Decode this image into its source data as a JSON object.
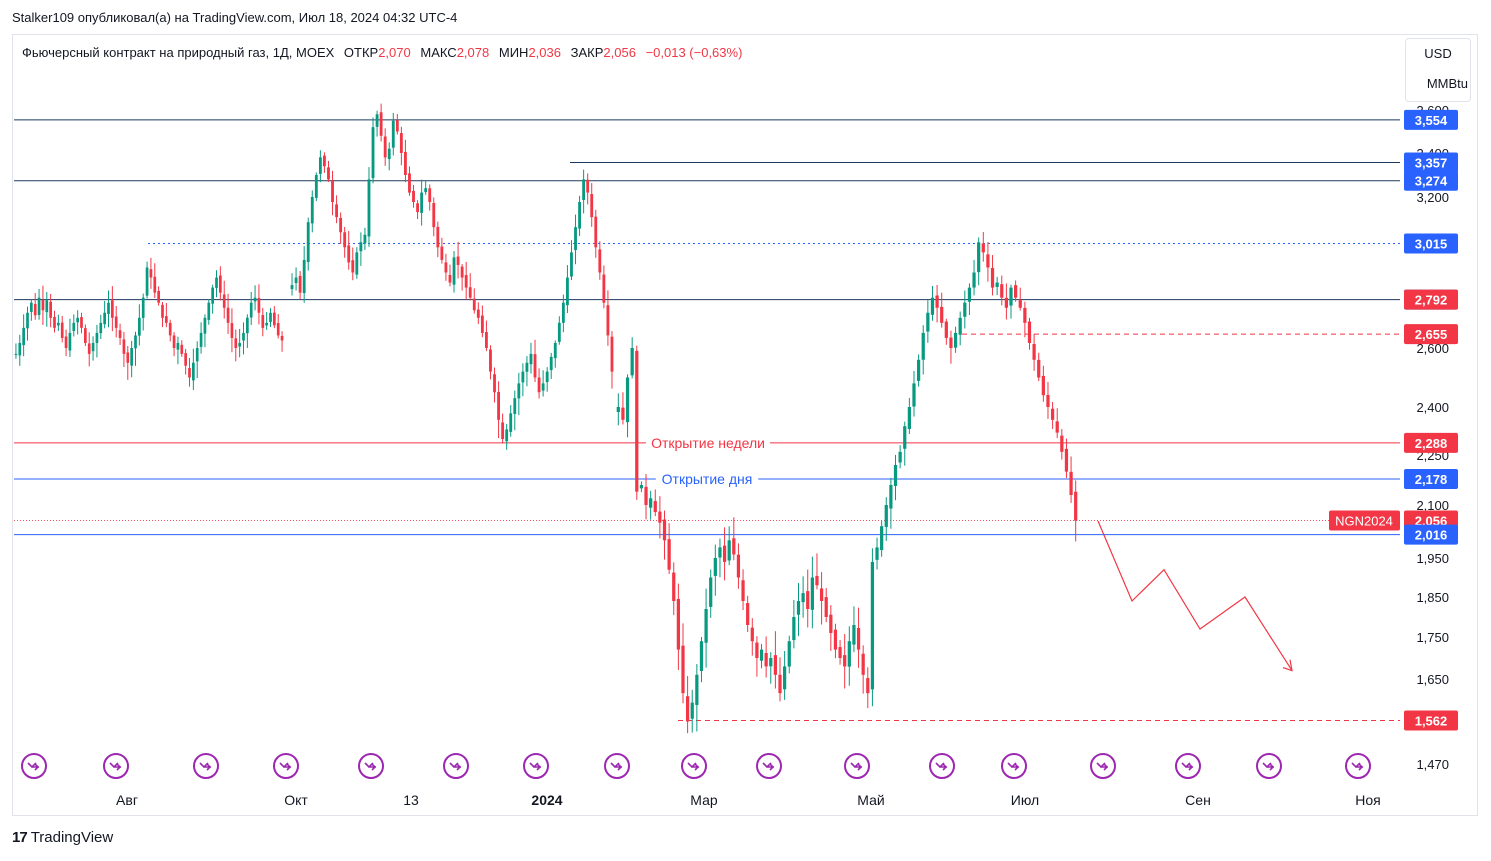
{
  "header": {
    "publisher_line": "Stalker109 опубликовал(а) на TradingView.com, Июл 18, 2024 04:32 UTC-4"
  },
  "legend": {
    "title": "Фьючерсный контракт на природный газ, 1Д, MOEX",
    "open_label": "ОТКР",
    "open_value": "2,070",
    "high_label": "МАКС",
    "high_value": "2,078",
    "low_label": "МИН",
    "low_value": "2,036",
    "close_label": "ЗАКР",
    "close_value": "2,056",
    "change": "−0,013 (−0,63%)"
  },
  "currency": {
    "line1": "USD",
    "line2": "MMBtu"
  },
  "footer": {
    "brand": "TradingView",
    "logo": "17"
  },
  "colors": {
    "up": "#089981",
    "down": "#f23645",
    "blue_line": "#2962ff",
    "dark_line": "#1e3a5f",
    "red_line": "#f23645",
    "label_blue": "#2962ff",
    "label_red": "#f23645",
    "event_icon": "#9c27b0"
  },
  "chart_data": {
    "type": "candlestick",
    "symbol_label": "NGN2024",
    "ylim": [
      1.47,
      3.6
    ],
    "y_axis_ticks": [
      "3,600",
      "3,400",
      "3,200",
      "2,600",
      "2,400",
      "2,250",
      "2,100",
      "1,950",
      "1,850",
      "1,750",
      "1,650",
      "1,470"
    ],
    "x_axis_ticks": [
      "Авг",
      "Окт",
      "13",
      "2024",
      "Мар",
      "Май",
      "Июл",
      "Сен",
      "Ноя"
    ],
    "bold_x_tick": "2024",
    "levels": [
      {
        "value": 3.554,
        "label": "3,554",
        "style": "solid",
        "color": "dark",
        "label_color": "blue"
      },
      {
        "value": 3.357,
        "label": "3,357",
        "style": "solid",
        "color": "dark",
        "label_color": "blue"
      },
      {
        "value": 3.274,
        "label": "3,274",
        "style": "solid",
        "color": "dark",
        "label_color": "blue"
      },
      {
        "value": 3.015,
        "label": "3,015",
        "style": "dotted",
        "color": "blue",
        "label_color": "blue"
      },
      {
        "value": 2.792,
        "label": "2,792",
        "style": "solid",
        "color": "dark",
        "label_color": "blue"
      },
      {
        "value": 2.792,
        "label": "2,792",
        "style": "none",
        "color": "red",
        "label_color": "red"
      },
      {
        "value": 2.655,
        "label": "2,655",
        "style": "dashed",
        "color": "red",
        "label_color": "red"
      },
      {
        "value": 2.288,
        "label": "2,288",
        "style": "solid",
        "color": "red",
        "label_color": "red",
        "caption": "Открытие недели"
      },
      {
        "value": 2.178,
        "label": "2,178",
        "style": "solid",
        "color": "blue",
        "label_color": "blue",
        "caption": "Открытие дня"
      },
      {
        "value": 2.056,
        "label": "2,056",
        "style": "dotted",
        "color": "red",
        "label_color": "red"
      },
      {
        "value": 2.016,
        "label": "2,016",
        "style": "solid",
        "color": "blue",
        "label_color": "blue"
      },
      {
        "value": 1.562,
        "label": "1,562",
        "style": "dashed",
        "color": "red",
        "label_color": "red"
      }
    ],
    "closes": [
      2.58,
      2.62,
      2.68,
      2.74,
      2.78,
      2.73,
      2.8,
      2.75,
      2.79,
      2.72,
      2.68,
      2.7,
      2.64,
      2.6,
      2.66,
      2.7,
      2.72,
      2.68,
      2.62,
      2.58,
      2.62,
      2.66,
      2.7,
      2.74,
      2.78,
      2.72,
      2.68,
      2.64,
      2.58,
      2.55,
      2.6,
      2.65,
      2.72,
      2.8,
      2.92,
      2.88,
      2.82,
      2.78,
      2.72,
      2.7,
      2.65,
      2.6,
      2.62,
      2.58,
      2.54,
      2.5,
      2.55,
      2.6,
      2.66,
      2.72,
      2.78,
      2.84,
      2.88,
      2.82,
      2.76,
      2.7,
      2.64,
      2.6,
      2.62,
      2.66,
      2.72,
      2.78,
      2.8,
      2.74,
      2.68,
      2.7,
      2.74,
      2.69,
      2.65,
      2.63,
      2.85,
      2.88,
      2.82,
      2.95,
      3.1,
      3.2,
      3.3,
      3.38,
      3.34,
      3.28,
      3.18,
      3.12,
      3.06,
      3.0,
      2.94,
      2.9,
      2.98,
      3.02,
      3.05,
      3.28,
      3.52,
      3.58,
      3.48,
      3.38,
      3.42,
      3.55,
      3.5,
      3.4,
      3.3,
      3.22,
      3.18,
      3.14,
      3.22,
      3.24,
      3.18,
      3.08,
      3.0,
      2.95,
      2.9,
      2.86,
      2.96,
      2.93,
      2.88,
      2.84,
      2.8,
      2.75,
      2.72,
      2.66,
      2.6,
      2.52,
      2.45,
      2.36,
      2.3,
      2.33,
      2.38,
      2.43,
      2.48,
      2.52,
      2.55,
      2.58,
      2.5,
      2.45,
      2.48,
      2.52,
      2.57,
      2.62,
      2.7,
      2.78,
      2.88,
      2.98,
      3.08,
      3.18,
      3.28,
      3.22,
      3.12,
      3.0,
      2.9,
      2.78,
      2.65,
      2.52,
      2.4,
      2.36,
      2.5,
      2.6,
      2.14,
      2.16,
      2.1,
      2.12,
      2.08,
      2.05,
      2.0,
      1.92,
      1.84,
      1.72,
      1.62,
      1.56,
      1.6,
      1.66,
      1.74,
      1.82,
      1.9,
      1.95,
      1.98,
      1.94,
      2.0,
      1.96,
      1.9,
      1.84,
      1.78,
      1.74,
      1.7,
      1.72,
      1.68,
      1.7,
      1.66,
      1.62,
      1.68,
      1.74,
      1.8,
      1.84,
      1.86,
      1.82,
      1.9,
      1.88,
      1.84,
      1.8,
      1.76,
      1.72,
      1.7,
      1.68,
      1.74,
      1.78,
      1.72,
      1.66,
      1.62,
      1.94,
      1.98,
      2.04,
      2.1,
      2.16,
      2.22,
      2.26,
      2.34,
      2.4,
      2.48,
      2.56,
      2.66,
      2.74,
      2.8,
      2.76,
      2.7,
      2.64,
      2.6,
      2.66,
      2.72,
      2.78,
      2.84,
      2.9,
      3.02,
      2.98,
      2.92,
      2.84,
      2.86,
      2.8,
      2.76,
      2.84,
      2.8,
      2.76,
      2.7,
      2.62,
      2.56,
      2.5,
      2.44,
      2.4,
      2.36,
      2.32,
      2.26,
      2.2,
      2.13,
      2.056
    ],
    "gaps_after_index": [
      69,
      149
    ],
    "forecast_path": [
      [
        0,
        2.056
      ],
      [
        1,
        1.84
      ],
      [
        2,
        1.92
      ],
      [
        3,
        1.77
      ],
      [
        4,
        1.85
      ],
      [
        5,
        1.67
      ]
    ],
    "event_icon_count": 17
  }
}
